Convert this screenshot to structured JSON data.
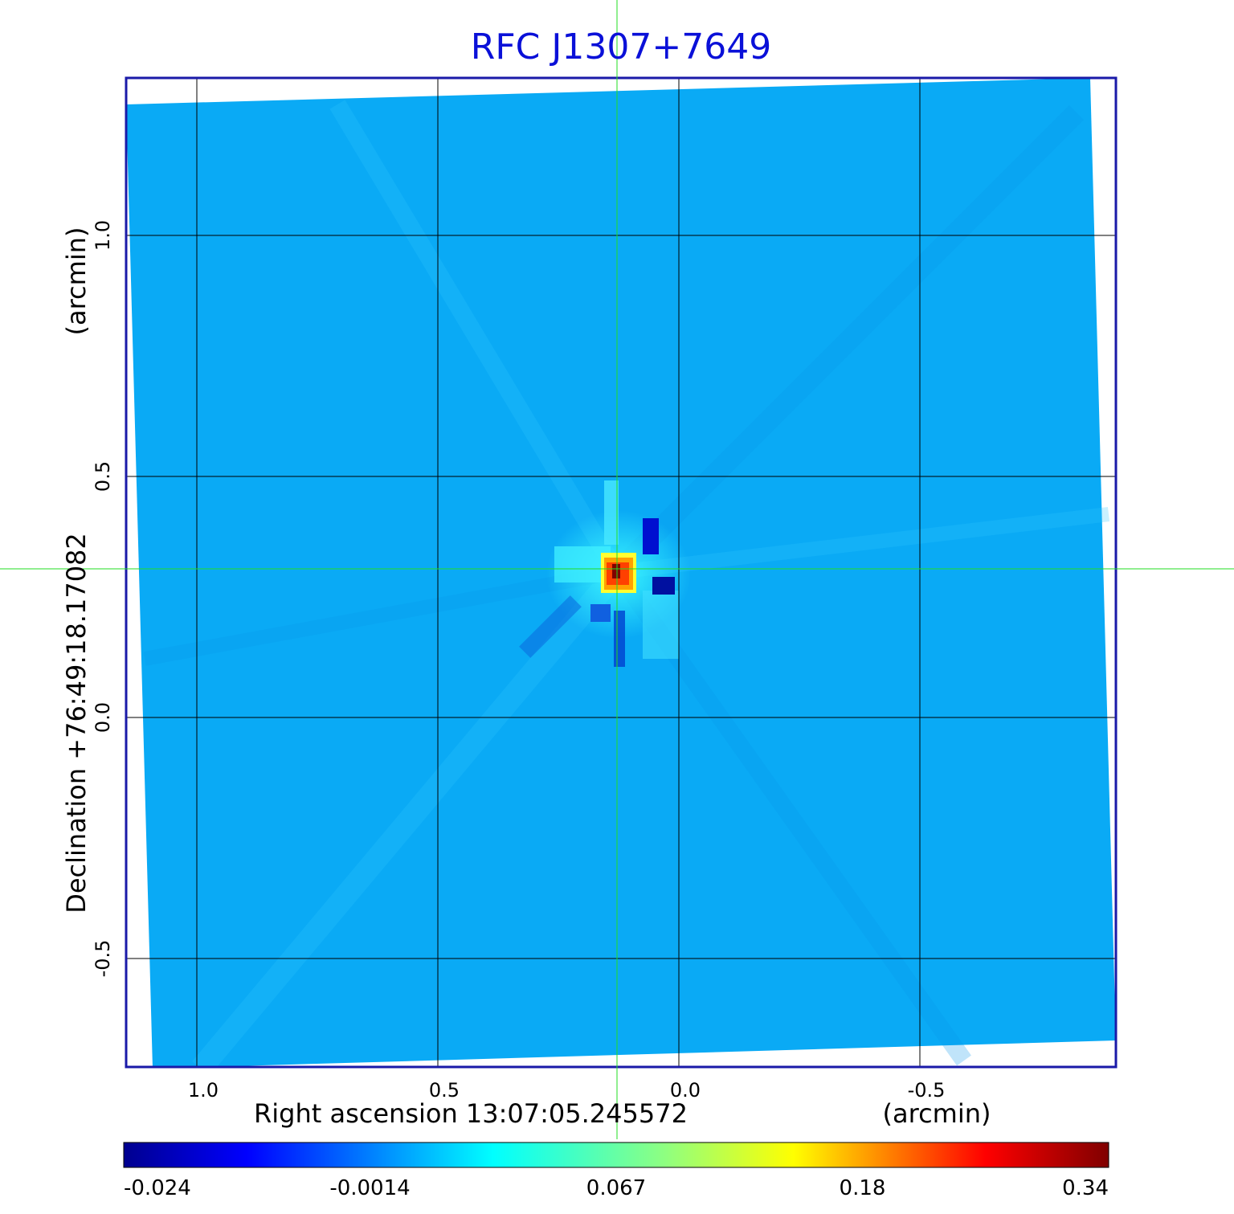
{
  "figure": {
    "title": "RFC J1307+7649",
    "title_color": "#0a10d8",
    "frame_color": "#1a1aa8",
    "background_map_color": "#0aaaf5",
    "crosshair_color": "#22dd22"
  },
  "axes": {
    "x": {
      "label": "Right ascension  13:07:05.245572",
      "unit_label": "(arcmin)",
      "ticks": [
        "1.0",
        "0.5",
        "0.0",
        "-0.5"
      ],
      "tick_values": [
        1.0,
        0.5,
        0.0,
        -0.5
      ]
    },
    "y": {
      "label": "Declination  +76:49:18.17082",
      "unit_label": "(arcmin)",
      "ticks": [
        "1.0",
        "0.5",
        "0.0",
        "-0.5"
      ],
      "tick_values": [
        1.0,
        0.5,
        0.0,
        -0.5
      ]
    }
  },
  "colorbar": {
    "ticks": [
      "-0.024",
      "-0.0014",
      "0.067",
      "0.18",
      "0.34"
    ],
    "colormap": [
      "#00008f",
      "#0000ff",
      "#00ffff",
      "#ffff00",
      "#ff0000",
      "#800000"
    ]
  },
  "source": {
    "peak_color": "#ff4000",
    "core_color": "#800000"
  }
}
